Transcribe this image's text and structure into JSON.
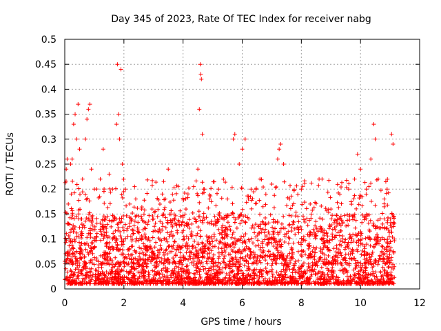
{
  "chart_data": {
    "type": "scatter",
    "title": "Day 345 of 2023, Rate Of TEC Index for receiver nabg",
    "xlabel": "GPS time / hours",
    "ylabel": "ROTI / TECUs",
    "xlim": [
      0,
      12
    ],
    "ylim": [
      0,
      0.5
    ],
    "xticks": [
      "0",
      "2",
      "4",
      "6",
      "8",
      "10",
      "12"
    ],
    "yticks": [
      "0",
      "0.05",
      "0.1",
      "0.15",
      "0.2",
      "0.25",
      "0.3",
      "0.35",
      "0.4",
      "0.45",
      "0.5"
    ],
    "grid": true,
    "marker": "+",
    "color": "#ff0000",
    "x_range_of_data": [
      0,
      11.15
    ],
    "series": [
      {
        "name": "ROTI",
        "points": [
          [
            0.05,
            0.24
          ],
          [
            0.08,
            0.26
          ],
          [
            0.12,
            0.17
          ],
          [
            0.2,
            0.25
          ],
          [
            0.25,
            0.26
          ],
          [
            0.3,
            0.33
          ],
          [
            0.35,
            0.35
          ],
          [
            0.4,
            0.3
          ],
          [
            0.45,
            0.37
          ],
          [
            0.5,
            0.28
          ],
          [
            0.6,
            0.22
          ],
          [
            0.7,
            0.3
          ],
          [
            0.75,
            0.34
          ],
          [
            0.8,
            0.36
          ],
          [
            0.85,
            0.37
          ],
          [
            0.9,
            0.24
          ],
          [
            1.0,
            0.2
          ],
          [
            1.2,
            0.22
          ],
          [
            1.3,
            0.28
          ],
          [
            1.5,
            0.23
          ],
          [
            1.75,
            0.33
          ],
          [
            1.78,
            0.45
          ],
          [
            1.82,
            0.35
          ],
          [
            1.85,
            0.3
          ],
          [
            1.9,
            0.44
          ],
          [
            1.95,
            0.25
          ],
          [
            2.05,
            0.2
          ],
          [
            2.2,
            0.17
          ],
          [
            2.4,
            0.18
          ],
          [
            2.6,
            0.16
          ],
          [
            3.0,
            0.14
          ],
          [
            3.2,
            0.12
          ],
          [
            3.4,
            0.18
          ],
          [
            3.5,
            0.24
          ],
          [
            3.7,
            0.15
          ],
          [
            4.1,
            0.16
          ],
          [
            4.3,
            0.13
          ],
          [
            4.5,
            0.24
          ],
          [
            4.55,
            0.36
          ],
          [
            4.58,
            0.45
          ],
          [
            4.6,
            0.43
          ],
          [
            4.62,
            0.42
          ],
          [
            4.65,
            0.31
          ],
          [
            4.7,
            0.2
          ],
          [
            4.9,
            0.18
          ],
          [
            5.2,
            0.2
          ],
          [
            5.5,
            0.18
          ],
          [
            5.7,
            0.3
          ],
          [
            5.75,
            0.31
          ],
          [
            5.9,
            0.25
          ],
          [
            6.0,
            0.28
          ],
          [
            6.1,
            0.3
          ],
          [
            6.3,
            0.2
          ],
          [
            6.6,
            0.22
          ],
          [
            6.8,
            0.19
          ],
          [
            7.0,
            0.21
          ],
          [
            7.2,
            0.26
          ],
          [
            7.25,
            0.28
          ],
          [
            7.3,
            0.29
          ],
          [
            7.4,
            0.25
          ],
          [
            7.6,
            0.18
          ],
          [
            8.0,
            0.2
          ],
          [
            8.3,
            0.17
          ],
          [
            8.6,
            0.22
          ],
          [
            8.7,
            0.22
          ],
          [
            9.0,
            0.16
          ],
          [
            9.3,
            0.19
          ],
          [
            9.6,
            0.2
          ],
          [
            9.8,
            0.22
          ],
          [
            9.9,
            0.27
          ],
          [
            10.0,
            0.24
          ],
          [
            10.2,
            0.2
          ],
          [
            10.35,
            0.26
          ],
          [
            10.45,
            0.33
          ],
          [
            10.5,
            0.3
          ],
          [
            10.6,
            0.22
          ],
          [
            10.8,
            0.18
          ],
          [
            10.9,
            0.2
          ],
          [
            11.05,
            0.31
          ],
          [
            11.1,
            0.29
          ]
        ],
        "dense_band": {
          "description": "dense cloud of points between 0.01 and about 0.15 across the whole time range",
          "y_range": [
            0.01,
            0.15
          ]
        }
      }
    ]
  }
}
